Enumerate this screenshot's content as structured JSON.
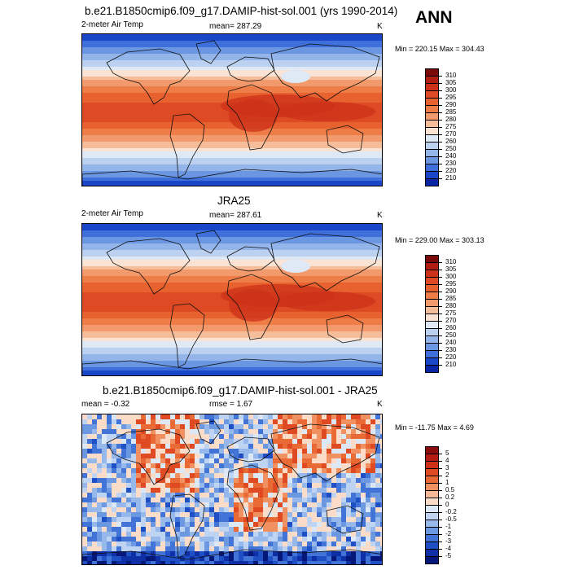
{
  "season": "ANN",
  "panels": [
    {
      "title": "b.e21.B1850cmip6.f09_g17.DAMIP-hist-sol.001 (yrs 1990-2014)",
      "left_label": "2-meter Air Temp",
      "center_label": "mean= 287.29",
      "unit": "K",
      "minmax": "Min = 220.15 Max = 304.43",
      "levels": [
        "310",
        "305",
        "300",
        "295",
        "290",
        "285",
        "280",
        "275",
        "270",
        "260",
        "250",
        "240",
        "230",
        "220",
        "210"
      ],
      "colors": [
        "#7a0a0a",
        "#b01e12",
        "#cc3219",
        "#dd4a23",
        "#e8622f",
        "#ef7d47",
        "#f29a6b",
        "#f6bd9b",
        "#fbe3d4",
        "#dfe9f6",
        "#bcd0f0",
        "#94b5ea",
        "#6b96e2",
        "#3e6fda",
        "#1a46c8",
        "#0a25a4"
      ],
      "kind": "temp"
    },
    {
      "title": "JRA25",
      "left_label": "2-meter Air Temp",
      "center_label": "mean= 287.61",
      "unit": "K",
      "minmax": "Min = 229.00 Max = 303.13",
      "levels": [
        "310",
        "305",
        "300",
        "295",
        "290",
        "285",
        "280",
        "275",
        "270",
        "260",
        "250",
        "240",
        "230",
        "220",
        "210"
      ],
      "colors": [
        "#7a0a0a",
        "#b01e12",
        "#cc3219",
        "#dd4a23",
        "#e8622f",
        "#ef7d47",
        "#f29a6b",
        "#f6bd9b",
        "#fbe3d4",
        "#dfe9f6",
        "#bcd0f0",
        "#94b5ea",
        "#6b96e2",
        "#3e6fda",
        "#1a46c8",
        "#0a25a4"
      ],
      "kind": "temp"
    },
    {
      "title": "b.e21.B1850cmip6.f09_g17.DAMIP-hist-sol.001 - JRA25",
      "left_label": "mean =  -0.32",
      "center_label": "rmse =  1.67",
      "unit": "K",
      "minmax": "Min = -11.75 Max =  4.69",
      "levels": [
        "5",
        "4",
        "3",
        "2",
        "1",
        "0.5",
        "0.2",
        "0",
        "-0.2",
        "-0.5",
        "-1",
        "-2",
        "-3",
        "-4",
        "-5"
      ],
      "colors": [
        "#8c0d0d",
        "#b51c13",
        "#cf3018",
        "#df4a22",
        "#ea6a36",
        "#f19061",
        "#f6b896",
        "#fbdcc8",
        "#dde8f7",
        "#bfd3f2",
        "#97b8eb",
        "#6c98e2",
        "#4174d6",
        "#1f4fc4",
        "#0e2fa6",
        "#05187a"
      ],
      "kind": "diff"
    }
  ]
}
